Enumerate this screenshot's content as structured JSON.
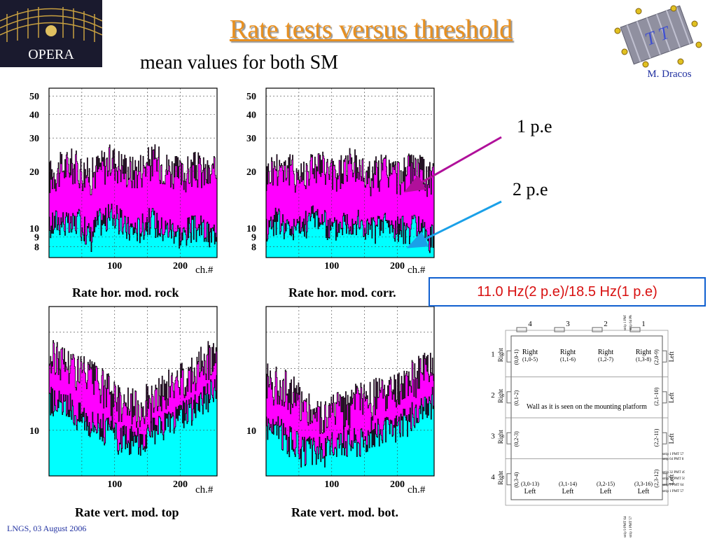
{
  "header": {
    "title": "Rate tests versus threshold",
    "subtitle": "mean values for both SM",
    "author": "M. Dracos",
    "opera_logo_text": "OPERA",
    "tt_logo_text": "T T"
  },
  "annotations": {
    "pe1": "1 p.e",
    "pe2": "2 p.e",
    "summary": "11.0 Hz(2 p.e)/18.5 Hz(1 p.e)",
    "pe1_color": "#b0109a",
    "pe2_color": "#1aa0e8"
  },
  "footer": "LNGS, 03 August 2006",
  "colors": {
    "magenta": "#ff00ff",
    "cyan": "#00ffff",
    "line": "#000000",
    "title_orange": "#e89020"
  },
  "chart_data": [
    {
      "type": "area",
      "title": "Rate hor. mod. rock",
      "xlabel": "ch.#",
      "x_ticks": [
        "100",
        "200"
      ],
      "y_ticks": [
        "50",
        "40",
        "30",
        "20",
        "10",
        "9",
        "8"
      ],
      "y_scale": "log",
      "xlim": [
        0,
        256
      ],
      "ylim": [
        7,
        55
      ],
      "grid": true,
      "series": [
        {
          "name": "1 p.e",
          "color": "#ff00ff",
          "values": [
            19,
            20,
            21,
            22,
            21,
            20,
            19,
            21,
            22,
            23,
            22,
            21,
            20,
            21,
            22,
            23,
            22,
            21,
            20,
            19,
            20,
            21,
            20,
            19,
            20
          ]
        },
        {
          "name": "2 p.e",
          "color": "#00ffff",
          "values": [
            10,
            11,
            11,
            10,
            11,
            10,
            9,
            11,
            11,
            12,
            11,
            10,
            10,
            10,
            11,
            11,
            10,
            10,
            10,
            9,
            10,
            10,
            10,
            9,
            10
          ]
        }
      ]
    },
    {
      "type": "area",
      "title": "Rate hor. mod. corr.",
      "xlabel": "ch.#",
      "x_ticks": [
        "100",
        "200"
      ],
      "y_ticks": [
        "50",
        "40",
        "30",
        "20",
        "10",
        "9",
        "8"
      ],
      "y_scale": "log",
      "xlim": [
        0,
        256
      ],
      "ylim": [
        7,
        55
      ],
      "grid": true,
      "series": [
        {
          "name": "1 p.e",
          "color": "#ff00ff",
          "values": [
            19,
            21,
            22,
            21,
            20,
            19,
            21,
            22,
            21,
            20,
            19,
            21,
            22,
            21,
            20,
            19,
            20,
            21,
            20,
            19,
            20,
            21,
            20,
            19,
            18
          ]
        },
        {
          "name": "2 p.e",
          "color": "#00ffff",
          "values": [
            10,
            11,
            11,
            10,
            10,
            10,
            11,
            12,
            11,
            10,
            10,
            11,
            11,
            11,
            10,
            10,
            10,
            11,
            10,
            10,
            10,
            10,
            10,
            9,
            9
          ]
        }
      ]
    },
    {
      "type": "area",
      "title": "Rate vert. mod. top",
      "xlabel": "ch.#",
      "x_ticks": [
        "100",
        "200"
      ],
      "y_ticks": [
        "10"
      ],
      "y_scale": "log",
      "xlim": [
        0,
        256
      ],
      "ylim": [
        6,
        40
      ],
      "grid": true,
      "series": [
        {
          "name": "1 p.e",
          "color": "#ff00ff",
          "values": [
            22,
            23,
            22,
            21,
            20,
            19,
            18,
            17,
            16,
            15,
            14,
            14,
            13,
            13,
            14,
            14,
            15,
            16,
            17,
            18,
            19,
            20,
            21,
            23,
            24
          ]
        },
        {
          "name": "2 p.e",
          "color": "#00ffff",
          "values": [
            14,
            14,
            13,
            13,
            12,
            12,
            11,
            11,
            10,
            10,
            9,
            9,
            9,
            9,
            9,
            10,
            10,
            11,
            11,
            12,
            12,
            13,
            14,
            15,
            16
          ]
        }
      ]
    },
    {
      "type": "area",
      "title": "Rate vert. mod. bot.",
      "xlabel": "ch.#",
      "x_ticks": [
        "100",
        "200"
      ],
      "y_ticks": [
        "10"
      ],
      "y_scale": "log",
      "xlim": [
        0,
        256
      ],
      "ylim": [
        6,
        40
      ],
      "grid": true,
      "series": [
        {
          "name": "1 p.e",
          "color": "#ff00ff",
          "values": [
            18,
            17,
            17,
            16,
            15,
            14,
            13,
            12,
            12,
            12,
            13,
            13,
            13,
            14,
            14,
            14,
            15,
            15,
            15,
            16,
            17,
            18,
            19,
            20,
            21
          ]
        },
        {
          "name": "2 p.e",
          "color": "#00ffff",
          "values": [
            11,
            10,
            10,
            9,
            9,
            8,
            8,
            8,
            8,
            8,
            9,
            9,
            9,
            9,
            9,
            10,
            10,
            10,
            10,
            11,
            11,
            12,
            12,
            13,
            14
          ]
        }
      ]
    }
  ],
  "wall": {
    "top_numbers": [
      "4",
      "3",
      "2",
      "1"
    ],
    "left_numbers": [
      "1",
      "2",
      "3",
      "4"
    ],
    "top_labels": [
      "Right\n(1,0-5)",
      "Right\n(1,1-6)",
      "Right\n(1,2-7)",
      "Right\n(1,3-8)"
    ],
    "bottom_labels": [
      "(3,0-13)\nLeft",
      "(3,1-14)\nLeft",
      "(3,2-15)\nLeft",
      "(3,3-16)\nLeft"
    ],
    "left_labels": [
      "(0,0-1)",
      "(0,1-2)",
      "(0,2-3)",
      "(0,3-4)"
    ],
    "right_labels": [
      "(2,0-9)",
      "(2,1-10)",
      "(2,2-11)",
      "(2,3-12)"
    ],
    "left_side_word": "Right",
    "right_side_word": "Left",
    "center_text": "Wall as it is seen on the mounting platform",
    "pmt_labels": [
      "strip 1 PMT 57",
      "strip 64 PMT 8",
      "strip 32 PMT 49",
      "strip 16 PMT 56",
      "strip 9 PMT 64",
      "strip 1 PMT 57"
    ]
  }
}
